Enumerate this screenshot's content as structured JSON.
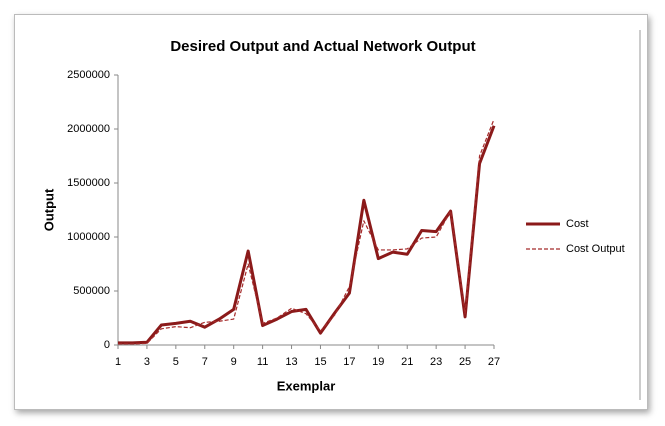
{
  "chart_data": {
    "type": "line",
    "title": "Desired Output and Actual Network Output",
    "xlabel": "Exemplar",
    "ylabel": "Output",
    "x": [
      1,
      2,
      3,
      4,
      5,
      6,
      7,
      8,
      9,
      10,
      11,
      12,
      13,
      14,
      15,
      16,
      17,
      18,
      19,
      20,
      21,
      22,
      23,
      24,
      25,
      26,
      27
    ],
    "xlim": [
      1,
      27
    ],
    "xticks": [
      1,
      3,
      5,
      7,
      9,
      11,
      13,
      15,
      17,
      19,
      21,
      23,
      25,
      27
    ],
    "ylim": [
      0,
      2500000
    ],
    "yticks": [
      0,
      500000,
      1000000,
      1500000,
      2000000,
      2500000
    ],
    "grid": false,
    "legend": "right",
    "series": [
      {
        "name": "Cost",
        "color": "#8b1a1a",
        "dashed": false,
        "values": [
          20000,
          20000,
          25000,
          185000,
          200000,
          220000,
          165000,
          240000,
          330000,
          870000,
          180000,
          240000,
          310000,
          330000,
          110000,
          300000,
          480000,
          1340000,
          800000,
          860000,
          840000,
          1060000,
          1050000,
          1240000,
          260000,
          1680000,
          2030000
        ]
      },
      {
        "name": "Cost Output",
        "color": "#a52a2a",
        "dashed": true,
        "values": [
          10000,
          10000,
          15000,
          150000,
          170000,
          160000,
          210000,
          220000,
          240000,
          750000,
          200000,
          250000,
          340000,
          290000,
          130000,
          280000,
          540000,
          1150000,
          880000,
          880000,
          890000,
          990000,
          1000000,
          1240000,
          290000,
          1750000,
          2090000
        ]
      }
    ]
  }
}
